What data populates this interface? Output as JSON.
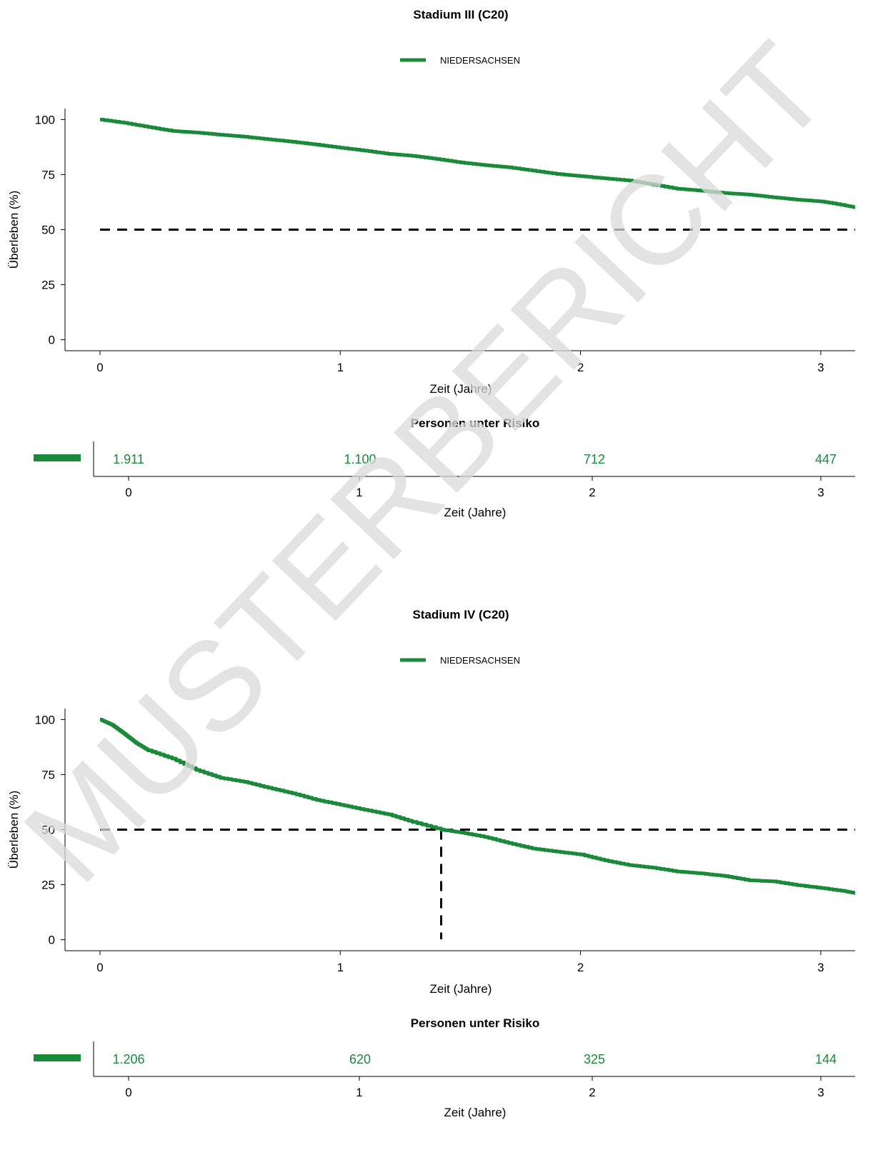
{
  "colors": {
    "series": "#1a8a3a",
    "reference": "#000000",
    "axis": "#000000",
    "watermark": "#d9d9d9"
  },
  "watermark": "MUSTERBERICHT",
  "chart_data": [
    {
      "type": "line",
      "title": "Stadium III (C20)",
      "xlabel": "Zeit (Jahre)",
      "ylabel": "Überleben (%)",
      "xlim": [
        -0.15,
        3.15
      ],
      "ylim": [
        -5,
        105
      ],
      "xticks": [
        "0",
        "1",
        "2",
        "3"
      ],
      "yticks": [
        "0",
        "25",
        "50",
        "75",
        "100"
      ],
      "legend": {
        "position": "top",
        "entries": [
          "NIEDERSACHSEN"
        ]
      },
      "reference_line_y": 50,
      "median_x": null,
      "series": [
        {
          "name": "NIEDERSACHSEN",
          "x": [
            0,
            0.1,
            0.2,
            0.3,
            0.4,
            0.5,
            0.6,
            0.7,
            0.8,
            0.9,
            1.0,
            1.1,
            1.2,
            1.3,
            1.4,
            1.5,
            1.6,
            1.7,
            1.8,
            1.9,
            2.0,
            2.1,
            2.2,
            2.3,
            2.4,
            2.5,
            2.6,
            2.7,
            2.8,
            2.9,
            3.0,
            3.1,
            3.15
          ],
          "y": [
            100,
            98.5,
            96.6,
            94.8,
            94.1,
            93.1,
            92.2,
            91.0,
            89.9,
            88.6,
            87.2,
            85.9,
            84.4,
            83.5,
            82.1,
            80.5,
            79.3,
            78.3,
            76.8,
            75.3,
            74.3,
            73.3,
            72.3,
            70.5,
            68.6,
            67.7,
            66.6,
            65.9,
            64.7,
            63.6,
            62.8,
            61.0,
            60.0
          ]
        }
      ],
      "risk_table": {
        "title": "Personen unter Risiko",
        "xlabel": "Zeit (Jahre)",
        "xticks": [
          "0",
          "1",
          "2",
          "3"
        ],
        "values": [
          "1.911",
          "1.100",
          "712",
          "447"
        ]
      }
    },
    {
      "type": "line",
      "title": "Stadium IV (C20)",
      "xlabel": "Zeit (Jahre)",
      "ylabel": "Überleben (%)",
      "xlim": [
        -0.15,
        3.15
      ],
      "ylim": [
        -5,
        105
      ],
      "xticks": [
        "0",
        "1",
        "2",
        "3"
      ],
      "yticks": [
        "0",
        "25",
        "50",
        "75",
        "100"
      ],
      "legend": {
        "position": "top",
        "entries": [
          "NIEDERSACHSEN"
        ]
      },
      "reference_line_y": 50,
      "median_x": 1.42,
      "series": [
        {
          "name": "NIEDERSACHSEN",
          "x": [
            0,
            0.05,
            0.1,
            0.15,
            0.2,
            0.3,
            0.4,
            0.5,
            0.6,
            0.7,
            0.8,
            0.9,
            1.0,
            1.1,
            1.2,
            1.3,
            1.42,
            1.5,
            1.6,
            1.7,
            1.8,
            1.9,
            2.0,
            2.1,
            2.2,
            2.3,
            2.4,
            2.5,
            2.6,
            2.7,
            2.8,
            2.9,
            3.0,
            3.1,
            3.15
          ],
          "y": [
            100,
            97.5,
            93.5,
            89.3,
            86.0,
            82.3,
            77.1,
            73.5,
            71.7,
            69.0,
            66.5,
            63.5,
            61.3,
            59.0,
            56.9,
            53.5,
            50.0,
            48.7,
            46.7,
            43.9,
            41.4,
            40.0,
            38.7,
            36.0,
            33.9,
            32.7,
            31.0,
            30.1,
            28.9,
            27.0,
            26.5,
            24.8,
            23.5,
            22.0,
            21.0
          ]
        }
      ],
      "risk_table": {
        "title": "Personen unter Risiko",
        "xlabel": "Zeit (Jahre)",
        "xticks": [
          "0",
          "1",
          "2",
          "3"
        ],
        "values": [
          "1.206",
          "620",
          "325",
          "144"
        ]
      }
    }
  ]
}
